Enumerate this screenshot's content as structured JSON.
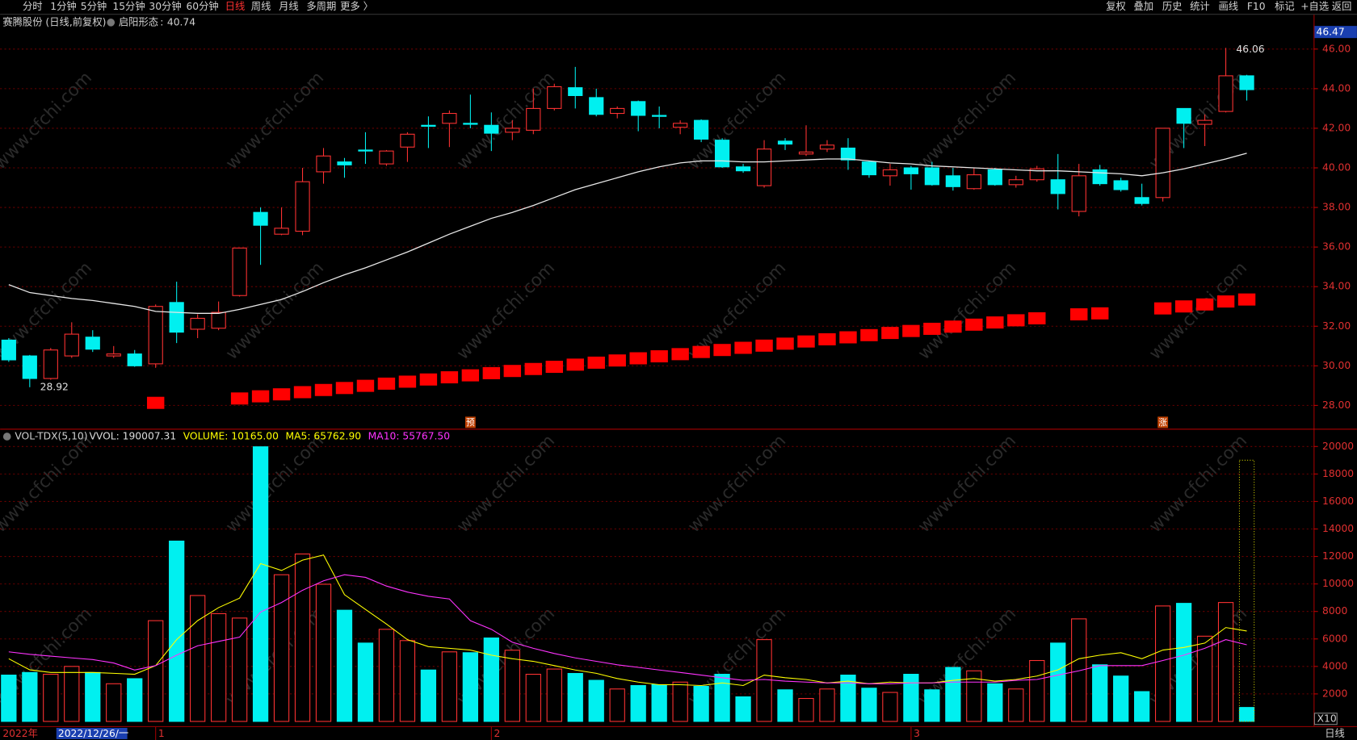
{
  "toolbar": {
    "periods": [
      "分时",
      "1分钟",
      "5分钟",
      "15分钟",
      "30分钟",
      "60分钟",
      "日线",
      "周线",
      "月线",
      "多周期",
      "更多 〉"
    ],
    "active": 6,
    "tools": [
      "复权",
      "叠加",
      "历史",
      "统计",
      "画线",
      "F10",
      "标记",
      "+自选",
      "返回"
    ]
  },
  "watermark": "www.cfchi.com",
  "chart_data": [
    {
      "type": "candlestick",
      "title": "赛腾股份 (日线,前复权)",
      "categories": [
        null,
        null,
        null,
        null,
        null,
        null,
        null,
        "1",
        null,
        null,
        null,
        null,
        null,
        null,
        null,
        null,
        null,
        null,
        null,
        null,
        null,
        null,
        null,
        "2",
        null,
        null,
        null,
        null,
        null,
        null,
        null,
        null,
        null,
        null,
        null,
        null,
        null,
        null,
        null,
        null,
        null,
        null,
        null,
        "3",
        null,
        null,
        null,
        null,
        null,
        null,
        null,
        null,
        null,
        null,
        null,
        null,
        null,
        null,
        null,
        null
      ],
      "open": [
        31.3,
        30.5,
        29.36,
        30.5,
        31.45,
        30.5,
        30.6,
        30.1,
        33.2,
        31.85,
        31.9,
        33.55,
        37.75,
        36.65,
        36.8,
        39.8,
        40.3,
        40.9,
        40.2,
        41.05,
        42.15,
        42.25,
        42.25,
        42.15,
        41.8,
        41.9,
        43.0,
        44.05,
        43.55,
        42.75,
        43.35,
        42.65,
        42.05,
        42.4,
        41.4,
        40.05,
        39.1,
        41.35,
        40.7,
        40.95,
        41.0,
        40.3,
        39.6,
        40.0,
        40.0,
        39.6,
        38.95,
        39.9,
        39.15,
        39.4,
        39.4,
        37.8,
        39.9,
        39.35,
        38.5,
        38.5,
        43.0,
        42.2,
        42.85,
        44.65
      ],
      "close": [
        30.3,
        29.36,
        30.8,
        31.6,
        30.84,
        30.6,
        30.0,
        33.0,
        31.7,
        32.4,
        32.7,
        35.95,
        37.1,
        36.95,
        39.3,
        40.6,
        40.15,
        40.85,
        40.85,
        41.7,
        42.1,
        42.75,
        42.2,
        41.75,
        42.0,
        43.0,
        44.1,
        43.65,
        42.7,
        43.0,
        42.65,
        42.6,
        42.25,
        41.45,
        40.05,
        39.85,
        40.95,
        41.2,
        40.8,
        41.15,
        40.4,
        39.65,
        39.9,
        39.7,
        39.15,
        39.05,
        39.65,
        39.15,
        39.4,
        39.95,
        38.7,
        39.6,
        39.2,
        38.9,
        38.2,
        42.0,
        42.25,
        42.4,
        44.65,
        43.95
      ],
      "high": [
        31.4,
        30.55,
        30.9,
        32.2,
        31.8,
        31.0,
        30.8,
        33.1,
        34.25,
        32.6,
        33.25,
        35.95,
        38.0,
        38.0,
        40.0,
        41.0,
        40.5,
        41.8,
        40.9,
        41.8,
        42.6,
        42.9,
        43.7,
        42.8,
        42.4,
        44.0,
        44.25,
        45.1,
        44.0,
        43.1,
        43.4,
        43.1,
        42.4,
        42.45,
        41.5,
        40.2,
        41.4,
        41.5,
        42.15,
        41.4,
        41.5,
        40.35,
        40.2,
        40.1,
        40.3,
        40.0,
        40.0,
        40.0,
        39.6,
        40.1,
        40.7,
        40.2,
        40.15,
        39.5,
        39.2,
        42.0,
        43.0,
        42.7,
        46.06,
        44.7
      ],
      "low": [
        30.2,
        28.92,
        29.3,
        30.4,
        30.7,
        30.4,
        29.95,
        29.9,
        31.15,
        31.4,
        31.8,
        33.5,
        35.1,
        36.6,
        36.6,
        39.2,
        39.5,
        40.2,
        40.1,
        40.3,
        41.0,
        41.05,
        42.0,
        40.85,
        41.4,
        41.7,
        42.9,
        43.0,
        42.6,
        42.5,
        41.85,
        42.0,
        41.7,
        41.3,
        40.0,
        39.75,
        39.0,
        40.9,
        40.6,
        40.8,
        39.9,
        39.5,
        39.1,
        38.9,
        39.1,
        38.85,
        38.9,
        39.1,
        39.0,
        39.3,
        37.9,
        37.55,
        39.1,
        38.8,
        38.1,
        38.3,
        41.0,
        41.1,
        42.8,
        43.4
      ],
      "up_color": "#ff3232",
      "down_color": "#00f0f0",
      "series": [
        {
          "name": "启阳形态",
          "color": "#e8e8e8",
          "values": [
            34.1,
            33.7,
            33.55,
            33.4,
            33.3,
            33.15,
            33.0,
            32.75,
            32.7,
            32.65,
            32.65,
            32.85,
            33.1,
            33.35,
            33.75,
            34.2,
            34.6,
            34.95,
            35.35,
            35.75,
            36.2,
            36.65,
            37.05,
            37.45,
            37.75,
            38.1,
            38.5,
            38.9,
            39.2,
            39.5,
            39.8,
            40.05,
            40.25,
            40.35,
            40.35,
            40.3,
            40.3,
            40.35,
            40.4,
            40.45,
            40.45,
            40.35,
            40.25,
            40.2,
            40.1,
            40.05,
            40.0,
            39.95,
            39.9,
            39.85,
            39.85,
            39.8,
            39.75,
            39.7,
            39.6,
            39.75,
            39.95,
            40.2,
            40.45,
            40.74
          ]
        },
        {
          "color": "#ff0000",
          "values": [
            null,
            null,
            null,
            null,
            null,
            null,
            null,
            28.13,
            null,
            null,
            null,
            28.35,
            28.46,
            28.56,
            28.67,
            28.78,
            28.88,
            28.99,
            29.1,
            29.2,
            29.31,
            29.42,
            29.52,
            29.63,
            29.74,
            29.84,
            29.95,
            30.06,
            30.16,
            30.27,
            30.38,
            30.48,
            30.59,
            30.7,
            30.8,
            30.91,
            31.02,
            31.12,
            31.23,
            31.34,
            31.44,
            31.55,
            31.66,
            31.76,
            31.87,
            31.98,
            32.08,
            32.19,
            32.3,
            32.4,
            null,
            32.6,
            32.65,
            null,
            null,
            32.9,
            33.0,
            33.1,
            33.25,
            33.35
          ]
        }
      ],
      "flags": [
        null,
        null,
        null,
        null,
        null,
        null,
        null,
        null,
        null,
        null,
        null,
        null,
        null,
        null,
        null,
        null,
        null,
        null,
        null,
        null,
        null,
        null,
        "预",
        null,
        null,
        null,
        null,
        null,
        null,
        null,
        null,
        null,
        null,
        null,
        null,
        null,
        null,
        null,
        null,
        null,
        null,
        null,
        null,
        null,
        null,
        null,
        null,
        null,
        null,
        null,
        null,
        null,
        null,
        null,
        null,
        "涨",
        null,
        null,
        null,
        null
      ],
      "ylim": [
        26.82,
        46.47
      ],
      "yticks": [
        {
          "value": 28,
          "label": "28.00"
        },
        {
          "value": 30,
          "label": "30.00"
        },
        {
          "value": 32,
          "label": "32.00"
        },
        {
          "value": 34,
          "label": "34.00"
        },
        {
          "value": 36,
          "label": "36.00"
        },
        {
          "value": 38,
          "label": "38.00"
        },
        {
          "value": 40,
          "label": "40.00"
        },
        {
          "value": 42,
          "label": "42.00"
        },
        {
          "value": 44,
          "label": "44.00"
        },
        {
          "value": 46,
          "label": "46.00"
        }
      ],
      "grid": true
    },
    {
      "type": "bar",
      "title": "VOL-TDX(5,10)",
      "header": [
        {
          "text": "VVOL: 190007.31",
          "color": "#dddddd"
        },
        {
          "text": "VOLUME: 10165.00",
          "color": "#ffff00"
        },
        {
          "text": "MA5: 65762.90",
          "color": "#ffff00"
        },
        {
          "text": "MA10: 55767.50",
          "color": "#ff33ff"
        }
      ],
      "values": [
        3370,
        3560,
        3430,
        4000,
        3560,
        2740,
        3110,
        7330,
        13120,
        9160,
        7840,
        7520,
        19980,
        10670,
        12180,
        9980,
        8090,
        5700,
        6700,
        5880,
        3740,
        5060,
        5000,
        6070,
        5180,
        3430,
        3810,
        3490,
        2990,
        2360,
        2610,
        2670,
        2860,
        2550,
        3430,
        1790,
        5950,
        2300,
        1670,
        2360,
        3370,
        2420,
        2110,
        3430,
        2300,
        3930,
        3680,
        2740,
        2360,
        4430,
        5700,
        7460,
        4120,
        3300,
        2170,
        8400,
        8590,
        6200,
        8650,
        1016.5
      ],
      "series": [
        {
          "color": "#ffff00",
          "values": [
            4560,
            3750,
            3560,
            3560,
            3560,
            3500,
            3430,
            4060,
            5950,
            7330,
            8280,
            8970,
            11480,
            10980,
            11730,
            12110,
            9220,
            8150,
            7080,
            5950,
            5440,
            5320,
            5190,
            4820,
            4560,
            4370,
            4060,
            3740,
            3500,
            3120,
            2860,
            2670,
            2670,
            2610,
            2800,
            2610,
            3370,
            3180,
            3050,
            2800,
            2930,
            2740,
            2860,
            2800,
            2800,
            2990,
            3120,
            2930,
            3050,
            3300,
            3750,
            4560,
            4820,
            5000,
            4560,
            5190,
            5380,
            5700,
            6830,
            6576
          ]
        },
        {
          "color": "#ff33ff",
          "values": [
            5060,
            4880,
            4750,
            4620,
            4500,
            4250,
            3740,
            4060,
            4820,
            5500,
            5820,
            6130,
            7960,
            8650,
            9540,
            10230,
            10670,
            10480,
            9850,
            9410,
            9100,
            8910,
            7330,
            6700,
            5760,
            5320,
            4940,
            4620,
            4370,
            4120,
            3930,
            3740,
            3560,
            3370,
            3180,
            2990,
            3050,
            2930,
            2860,
            2800,
            2800,
            2740,
            2740,
            2800,
            2800,
            2860,
            2860,
            2860,
            2990,
            3050,
            3370,
            3680,
            4060,
            4060,
            4060,
            4430,
            4820,
            5320,
            5950,
            5577
          ]
        }
      ],
      "forecast": 19000,
      "unit": "X10",
      "ylim": [
        0,
        21100
      ],
      "yticks": [
        2000,
        4000,
        6000,
        8000,
        10000,
        12000,
        14000,
        16000,
        18000,
        20000
      ],
      "grid": true
    }
  ],
  "footer": {
    "year": "2022年",
    "cursor_date": "2022/12/26/一",
    "period": "日线"
  }
}
